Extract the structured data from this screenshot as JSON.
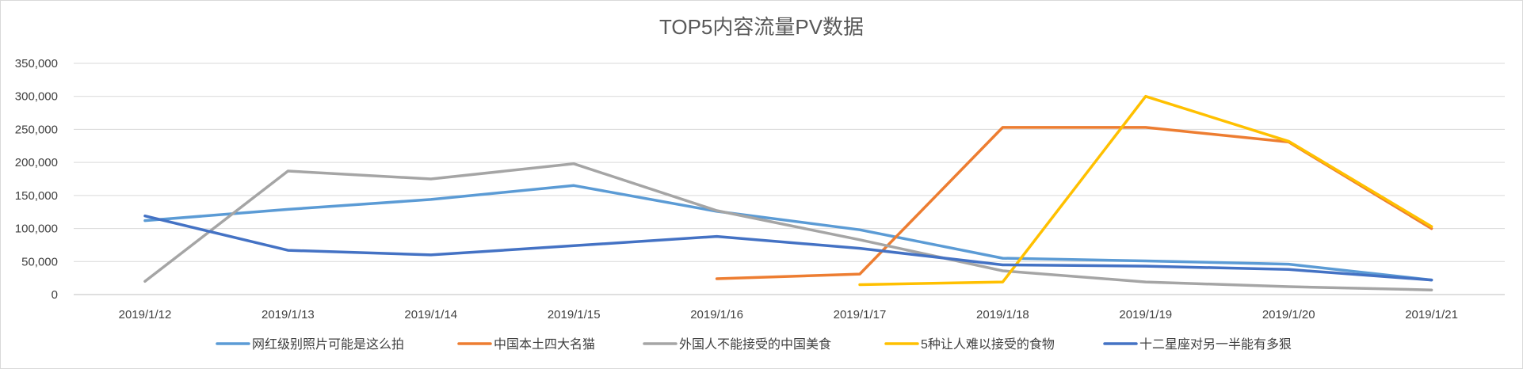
{
  "chart_data": {
    "type": "line",
    "title": "TOP5内容流量PV数据",
    "xlabel": "",
    "ylabel": "",
    "categories": [
      "2019/1/12",
      "2019/1/13",
      "2019/1/14",
      "2019/1/15",
      "2019/1/16",
      "2019/1/17",
      "2019/1/18",
      "2019/1/19",
      "2019/1/20",
      "2019/1/21"
    ],
    "ylim": [
      0,
      350000
    ],
    "yticks": [
      "0",
      "50,000",
      "100,000",
      "150,000",
      "200,000",
      "250,000",
      "300,000",
      "350,000"
    ],
    "grid": true,
    "legend_position": "bottom",
    "series": [
      {
        "name": "网红级别照片可能是这么拍",
        "color": "#5B9BD5",
        "values": [
          112000,
          129000,
          144000,
          165000,
          126000,
          98000,
          55000,
          51000,
          46000,
          22000
        ]
      },
      {
        "name": "中国本土四大名猫",
        "color": "#ED7D31",
        "values": [
          null,
          null,
          null,
          null,
          24000,
          31000,
          253000,
          253000,
          231000,
          100000
        ]
      },
      {
        "name": "外国人不能接受的中国美食",
        "color": "#A5A5A5",
        "values": [
          20000,
          187000,
          175000,
          198000,
          127000,
          83000,
          36000,
          19000,
          12000,
          7000
        ]
      },
      {
        "name": "5种让人难以接受的食物",
        "color": "#FFC000",
        "values": [
          null,
          null,
          null,
          null,
          null,
          15000,
          19000,
          300000,
          232000,
          103000
        ]
      },
      {
        "name": "十二星座对另一半能有多狠",
        "color": "#4472C4",
        "values": [
          119000,
          67000,
          60000,
          74000,
          88000,
          70000,
          45000,
          43000,
          38000,
          22000
        ]
      }
    ]
  }
}
